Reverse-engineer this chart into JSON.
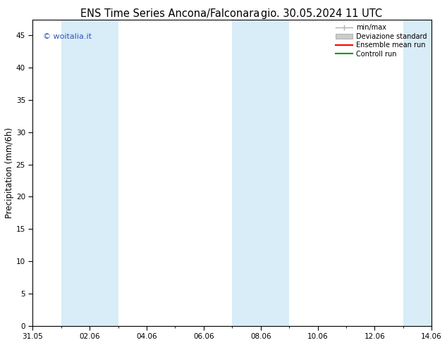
{
  "title": "ENS Time Series Ancona/Falconara",
  "title2": "gio. 30.05.2024 11 UTC",
  "ylabel": "Precipitation (mm/6h)",
  "ylim": [
    0,
    47.5
  ],
  "yticks": [
    0,
    5,
    10,
    15,
    20,
    25,
    30,
    35,
    40,
    45
  ],
  "xlim_start": 0,
  "xlim_end": 14,
  "xtick_labels": [
    "31.05",
    "02.06",
    "04.06",
    "06.06",
    "08.06",
    "10.06",
    "12.06",
    "14.06"
  ],
  "xtick_positions": [
    0,
    2,
    4,
    6,
    8,
    10,
    12,
    14
  ],
  "shaded_bands": [
    {
      "x_start": 1,
      "x_end": 3
    },
    {
      "x_start": 7,
      "x_end": 9
    },
    {
      "x_start": 13,
      "x_end": 14
    }
  ],
  "band_color": "#d8edf8",
  "watermark": "© woitalia.it",
  "watermark_color": "#3355bb",
  "legend_entries": [
    {
      "label": "min/max",
      "color": "#b0b0b0",
      "type": "errorbar"
    },
    {
      "label": "Deviazione standard",
      "color": "#cccccc",
      "type": "fill"
    },
    {
      "label": "Ensemble mean run",
      "color": "#ff0000",
      "type": "line"
    },
    {
      "label": "Controll run",
      "color": "#009900",
      "type": "line"
    }
  ],
  "background_color": "#ffffff",
  "plot_bg_color": "#ffffff",
  "tick_fontsize": 7.5,
  "label_fontsize": 8.5,
  "title_fontsize": 10.5
}
